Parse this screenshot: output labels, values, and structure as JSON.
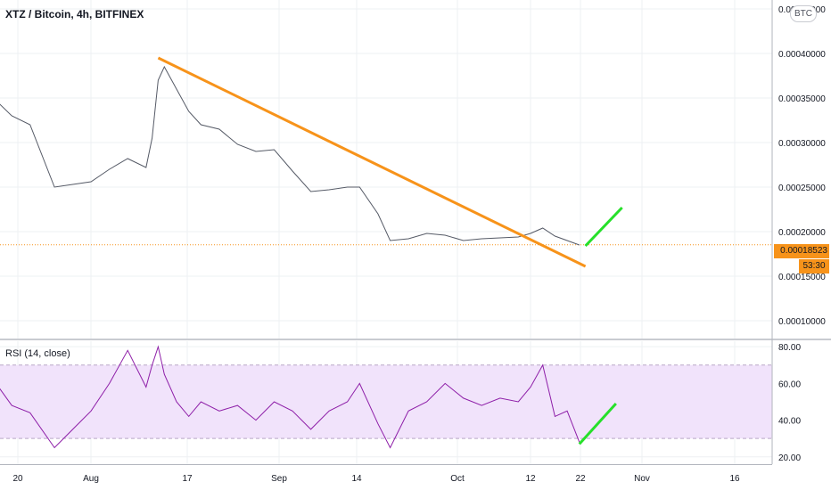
{
  "header": {
    "title": "XTZ / Bitcoin, 4h, BITFINEX",
    "currency_badge": "BTC"
  },
  "indicator": {
    "label": "RSI (14, close)"
  },
  "last_price": {
    "value": "0.00018523",
    "countdown": "53:30"
  },
  "colors": {
    "price_line": "#555a66",
    "trendline": "#f7931a",
    "projection": "#26e02a",
    "rsi_line": "#8e1fa8",
    "rsi_band": "#f1e3fb",
    "tag": "#f7931a"
  },
  "chart_data": [
    {
      "type": "line",
      "title": "XTZ / Bitcoin, 4h, BITFINEX",
      "xlabel": "",
      "ylabel": "",
      "x_ticks": [
        "20",
        "Aug",
        "17",
        "Sep",
        "14",
        "Oct",
        "12",
        "22",
        "Nov",
        "16"
      ],
      "y_ticks": [
        "0.00010000",
        "0.00015000",
        "0.00020000",
        "0.00025000",
        "0.00030000",
        "0.00035000",
        "0.00040000",
        "0.00045000"
      ],
      "ylim": [
        8e-05,
        0.00046
      ],
      "grid": true,
      "series": [
        {
          "x": [
            "Jul 16",
            "Jul 19",
            "Jul 22",
            "Jul 26",
            "Jul 29",
            "Aug 1",
            "Aug 4",
            "Aug 7",
            "Aug 10",
            "Aug 11",
            "Aug 12",
            "Aug 13",
            "Aug 15",
            "Aug 17",
            "Aug 19",
            "Aug 22",
            "Aug 25",
            "Aug 28",
            "Aug 31",
            "Sep 3",
            "Sep 6",
            "Sep 9",
            "Sep 12",
            "Sep 14",
            "Sep 17",
            "Sep 19",
            "Sep 22",
            "Sep 25",
            "Sep 28",
            "Oct 1",
            "Oct 4",
            "Oct 7",
            "Oct 10",
            "Oct 12",
            "Oct 14",
            "Oct 16",
            "Oct 18",
            "Oct 20"
          ],
          "values": [
            0.00035,
            0.00033,
            0.00032,
            0.00025,
            0.000253,
            0.000256,
            0.00027,
            0.000282,
            0.000272,
            0.000305,
            0.00037,
            0.000385,
            0.00036,
            0.000335,
            0.00032,
            0.000315,
            0.000298,
            0.00029,
            0.000292,
            0.000268,
            0.000245,
            0.000247,
            0.00025,
            0.00025,
            0.00022,
            0.00019,
            0.000192,
            0.000198,
            0.000196,
            0.00019,
            0.000192,
            0.000193,
            0.000194,
            0.000198,
            0.000204,
            0.000195,
            0.00019,
            0.000185
          ]
        }
      ],
      "annotations": [
        {
          "type": "trendline",
          "from": [
            "Aug 12",
            0.000395
          ],
          "to": [
            "Oct 21",
            0.000161
          ]
        },
        {
          "type": "projection",
          "from": [
            "Oct 21",
            0.000184
          ],
          "to": [
            "Oct 27",
            0.000227
          ]
        }
      ]
    },
    {
      "type": "line",
      "title": "RSI (14, close)",
      "y_ticks": [
        "20.00",
        "40.00",
        "60.00",
        "80.00"
      ],
      "ylim": [
        16,
        83
      ],
      "band": [
        30,
        70
      ],
      "series": [
        {
          "x": [
            "Jul 16",
            "Jul 19",
            "Jul 22",
            "Jul 26",
            "Jul 29",
            "Aug 1",
            "Aug 4",
            "Aug 7",
            "Aug 10",
            "Aug 11",
            "Aug 12",
            "Aug 13",
            "Aug 15",
            "Aug 17",
            "Aug 19",
            "Aug 22",
            "Aug 25",
            "Aug 28",
            "Aug 31",
            "Sep 3",
            "Sep 6",
            "Sep 9",
            "Sep 12",
            "Sep 14",
            "Sep 17",
            "Sep 19",
            "Sep 22",
            "Sep 25",
            "Sep 28",
            "Oct 1",
            "Oct 4",
            "Oct 7",
            "Oct 10",
            "Oct 12",
            "Oct 14",
            "Oct 16",
            "Oct 18",
            "Oct 20"
          ],
          "values": [
            62,
            48,
            44,
            25,
            35,
            45,
            60,
            78,
            58,
            70,
            80,
            65,
            50,
            42,
            50,
            45,
            48,
            40,
            50,
            45,
            35,
            45,
            50,
            60,
            38,
            25,
            45,
            50,
            60,
            52,
            48,
            52,
            50,
            58,
            70,
            42,
            45,
            28
          ]
        }
      ],
      "annotations": [
        {
          "type": "projection",
          "from": [
            "Oct 20",
            27
          ],
          "to": [
            "Oct 26",
            49
          ]
        }
      ]
    }
  ]
}
